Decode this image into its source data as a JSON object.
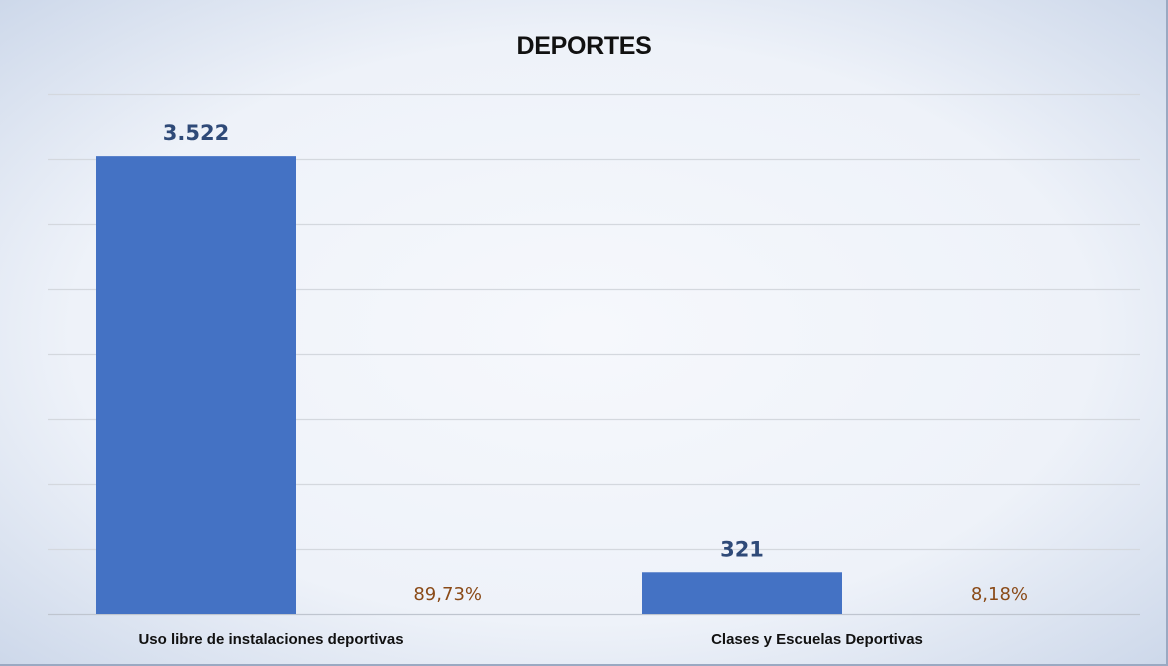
{
  "chart_data": {
    "type": "bar",
    "title": "DEPORTES",
    "categories": [
      "Uso libre de instalaciones deportivas",
      "Clases y Escuelas Deportivas"
    ],
    "series": [
      {
        "values": [
          3522,
          321
        ],
        "labels": [
          "3.522",
          "321"
        ],
        "color": "#4472c4"
      }
    ],
    "percent_labels": [
      "89,73%",
      "8,18%"
    ],
    "ylim": [
      0,
      4000
    ],
    "grid": true,
    "legend": "none",
    "colors": {
      "value_label": "#2f4a78",
      "percent_label": "#8a4a17",
      "gridline": "#d4d8de"
    }
  }
}
